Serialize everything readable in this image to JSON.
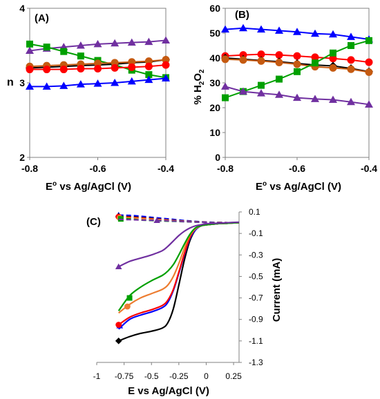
{
  "chart_data": [
    {
      "type": "line",
      "panel_label": "(A)",
      "xlabel_main": "E",
      "xlabel_sup": "o",
      "xlabel_rest": " vs Ag/AgCl (V)",
      "ylabel": "n",
      "xlim": [
        -0.8,
        -0.4
      ],
      "ylim": [
        2,
        4
      ],
      "xticks": [
        "-0.8",
        "-0.6",
        "-0.4"
      ],
      "xtick_values": [
        -0.8,
        -0.6,
        -0.4
      ],
      "yticks": [
        "2",
        "3",
        "4"
      ],
      "ytick_values": [
        2,
        3,
        4
      ],
      "grid": false,
      "x": [
        -0.8,
        -0.75,
        -0.7,
        -0.65,
        -0.6,
        -0.55,
        -0.5,
        -0.45,
        -0.4
      ],
      "series": [
        {
          "color": "#7030A0",
          "marker": "triangle",
          "values": [
            3.43,
            3.46,
            3.48,
            3.5,
            3.52,
            3.53,
            3.54,
            3.55,
            3.57
          ]
        },
        {
          "color": "#00A000",
          "marker": "square",
          "values": [
            3.52,
            3.48,
            3.42,
            3.36,
            3.3,
            3.24,
            3.17,
            3.11,
            3.07
          ]
        },
        {
          "color": "#000000",
          "marker": "diamond",
          "values": [
            3.2,
            3.21,
            3.22,
            3.23,
            3.24,
            3.25,
            3.27,
            3.28,
            3.31
          ]
        },
        {
          "color": "#C55A11",
          "marker": "circle",
          "values": [
            3.22,
            3.23,
            3.24,
            3.25,
            3.26,
            3.27,
            3.28,
            3.29,
            3.31
          ]
        },
        {
          "color": "#FF0000",
          "marker": "circle",
          "values": [
            3.18,
            3.18,
            3.18,
            3.19,
            3.19,
            3.2,
            3.21,
            3.22,
            3.24
          ]
        },
        {
          "color": "#0000FF",
          "marker": "triangle",
          "values": [
            2.95,
            2.95,
            2.96,
            2.98,
            2.99,
            3.0,
            3.02,
            3.04,
            3.06
          ]
        }
      ]
    },
    {
      "type": "line",
      "panel_label": "(B)",
      "xlabel_main": "E",
      "xlabel_sup": "o",
      "xlabel_rest": " vs Ag/AgCl (V)",
      "ylabel_main": "% H",
      "ylabel_sub1": "2",
      "ylabel_mid": "O",
      "ylabel_sub2": "2",
      "xlim": [
        -0.8,
        -0.4
      ],
      "ylim": [
        0,
        60
      ],
      "xticks": [
        "-0.8",
        "-0.6",
        "-0.4"
      ],
      "xtick_values": [
        -0.8,
        -0.6,
        -0.4
      ],
      "yticks": [
        "0",
        "10",
        "20",
        "30",
        "40",
        "50",
        "60"
      ],
      "ytick_values": [
        0,
        10,
        20,
        30,
        40,
        50,
        60
      ],
      "grid": false,
      "x": [
        -0.8,
        -0.75,
        -0.7,
        -0.65,
        -0.6,
        -0.55,
        -0.5,
        -0.45,
        -0.4
      ],
      "series": [
        {
          "color": "#0000FF",
          "marker": "triangle",
          "values": [
            51.5,
            52,
            51.5,
            51,
            50.5,
            49.8,
            49.5,
            48.5,
            47.5
          ]
        },
        {
          "color": "#FF0000",
          "marker": "circle",
          "values": [
            40.8,
            41.2,
            41.5,
            41.2,
            40.8,
            40.3,
            39.8,
            39.2,
            38.3
          ]
        },
        {
          "color": "#000000",
          "marker": "diamond",
          "values": [
            40,
            39.5,
            39,
            38.5,
            37.8,
            37.2,
            36.8,
            35.8,
            34.5
          ]
        },
        {
          "color": "#C55A11",
          "marker": "circle",
          "values": [
            39.5,
            39.2,
            38.8,
            38.2,
            37.5,
            36.5,
            36.0,
            35.5,
            34.3
          ]
        },
        {
          "color": "#00A000",
          "marker": "square",
          "values": [
            24,
            26.5,
            29,
            31.5,
            34.5,
            38,
            42,
            45,
            47
          ]
        },
        {
          "color": "#7030A0",
          "marker": "triangle",
          "values": [
            28.5,
            26.5,
            25.8,
            25.2,
            24,
            23.5,
            23.2,
            22.3,
            21.3
          ]
        }
      ]
    },
    {
      "type": "line",
      "panel_label": "(C)",
      "xlabel": "E vs Ag/AgCl (V)",
      "ylabel": "Current (mA)",
      "xlim": [
        -1,
        0.3
      ],
      "ylim": [
        -1.3,
        0.1
      ],
      "xticks": [
        "-1",
        "-0.75",
        "-0.5",
        "-0.25",
        "0",
        "0.25"
      ],
      "xtick_values": [
        -1,
        -0.75,
        -0.5,
        -0.25,
        0,
        0.25
      ],
      "yticks": [
        "0.1",
        "-0.1",
        "-0.3",
        "-0.5",
        "-0.7",
        "-0.9",
        "-1.1",
        "-1.3"
      ],
      "ytick_values": [
        0.1,
        -0.1,
        -0.3,
        -0.5,
        -0.7,
        -0.9,
        -1.1,
        -1.3
      ],
      "grid": false,
      "disk_current": [
        {
          "color": "#000000",
          "marker": "diamond",
          "marker_at": [
            -0.8,
            -1.1
          ],
          "x": [
            -0.8,
            -0.7,
            -0.6,
            -0.5,
            -0.4,
            -0.35,
            -0.3,
            -0.25,
            -0.2,
            -0.15,
            -0.1,
            -0.05,
            0,
            0.1,
            0.2,
            0.3
          ],
          "values": [
            -1.1,
            -1.06,
            -1.03,
            -1.01,
            -0.98,
            -0.93,
            -0.8,
            -0.58,
            -0.35,
            -0.17,
            -0.07,
            -0.03,
            -0.02,
            -0.01,
            -0.005,
            0
          ]
        },
        {
          "color": "#0000FF",
          "marker": "triangle",
          "marker_at": [
            -0.79,
            -0.96
          ],
          "x": [
            -0.8,
            -0.7,
            -0.6,
            -0.5,
            -0.4,
            -0.35,
            -0.3,
            -0.25,
            -0.2,
            -0.15,
            -0.1,
            -0.05,
            0,
            0.1,
            0.2,
            0.3
          ],
          "values": [
            -0.99,
            -0.9,
            -0.86,
            -0.83,
            -0.79,
            -0.74,
            -0.63,
            -0.47,
            -0.3,
            -0.15,
            -0.07,
            -0.03,
            -0.02,
            -0.01,
            -0.005,
            0
          ]
        },
        {
          "color": "#FF0000",
          "marker": "circle",
          "marker_at": [
            -0.8,
            -0.95
          ],
          "x": [
            -0.8,
            -0.7,
            -0.6,
            -0.5,
            -0.4,
            -0.35,
            -0.3,
            -0.25,
            -0.2,
            -0.15,
            -0.1,
            -0.05,
            0,
            0.1,
            0.2,
            0.3
          ],
          "values": [
            -0.95,
            -0.88,
            -0.84,
            -0.81,
            -0.77,
            -0.72,
            -0.62,
            -0.46,
            -0.29,
            -0.14,
            -0.06,
            -0.03,
            -0.02,
            -0.01,
            -0.005,
            0
          ]
        },
        {
          "color": "#ED7D31",
          "marker": "circle",
          "marker_at": [
            -0.72,
            -0.78
          ],
          "x": [
            -0.8,
            -0.7,
            -0.6,
            -0.5,
            -0.4,
            -0.35,
            -0.3,
            -0.25,
            -0.2,
            -0.15,
            -0.1,
            -0.05,
            0,
            0.1,
            0.2,
            0.3
          ],
          "values": [
            -0.84,
            -0.76,
            -0.7,
            -0.66,
            -0.62,
            -0.58,
            -0.5,
            -0.38,
            -0.24,
            -0.12,
            -0.06,
            -0.03,
            -0.02,
            -0.01,
            -0.005,
            0
          ]
        },
        {
          "color": "#00A000",
          "marker": "square",
          "marker_at": [
            -0.7,
            -0.7
          ],
          "x": [
            -0.8,
            -0.7,
            -0.6,
            -0.5,
            -0.4,
            -0.35,
            -0.3,
            -0.25,
            -0.2,
            -0.15,
            -0.1,
            -0.05,
            0,
            0.1,
            0.2,
            0.3
          ],
          "values": [
            -0.82,
            -0.68,
            -0.6,
            -0.54,
            -0.49,
            -0.45,
            -0.39,
            -0.3,
            -0.2,
            -0.11,
            -0.05,
            -0.03,
            -0.02,
            -0.01,
            -0.005,
            0
          ]
        },
        {
          "color": "#7030A0",
          "marker": "triangle",
          "marker_at": [
            -0.8,
            -0.41
          ],
          "x": [
            -0.8,
            -0.7,
            -0.6,
            -0.5,
            -0.4,
            -0.35,
            -0.3,
            -0.25,
            -0.2,
            -0.15,
            -0.1,
            -0.05,
            0,
            0.1,
            0.2,
            0.3
          ],
          "values": [
            -0.41,
            -0.36,
            -0.33,
            -0.3,
            -0.26,
            -0.22,
            -0.17,
            -0.12,
            -0.08,
            -0.05,
            -0.03,
            -0.02,
            -0.01,
            -0.005,
            0,
            0.005
          ]
        }
      ],
      "ring_current": [
        {
          "color": "#0000FF",
          "marker": "triangle",
          "marker_at": [
            -0.8,
            0.07
          ],
          "x": [
            -0.8,
            -0.7,
            -0.6,
            -0.5,
            -0.4,
            -0.3,
            -0.2,
            -0.1,
            0,
            0.1,
            0.2,
            0.3
          ],
          "values": [
            0.07,
            0.068,
            0.06,
            0.05,
            0.04,
            0.03,
            0.02,
            0.012,
            0.006,
            0.002,
            0,
            0
          ]
        },
        {
          "color": "#000000",
          "marker": "diamond",
          "marker_at": [
            -0.8,
            0.06
          ],
          "x": [
            -0.8,
            -0.7,
            -0.6,
            -0.5,
            -0.4,
            -0.3,
            -0.2,
            -0.1,
            0,
            0.1,
            0.2,
            0.3
          ],
          "values": [
            0.06,
            0.055,
            0.048,
            0.04,
            0.03,
            0.022,
            0.015,
            0.009,
            0.004,
            0.002,
            0,
            0
          ]
        },
        {
          "color": "#FF0000",
          "marker": "circle",
          "marker_at": [
            -0.8,
            0.055
          ],
          "x": [
            -0.8,
            -0.7,
            -0.6,
            -0.5,
            -0.4,
            -0.3,
            -0.2,
            -0.1,
            0,
            0.1,
            0.2,
            0.3
          ],
          "values": [
            0.055,
            0.05,
            0.044,
            0.036,
            0.028,
            0.02,
            0.013,
            0.008,
            0.004,
            0.002,
            0,
            0
          ]
        },
        {
          "color": "#ED7D31",
          "marker": "circle",
          "marker_at": [
            -0.79,
            0.045
          ],
          "x": [
            -0.8,
            -0.7,
            -0.6,
            -0.5,
            -0.4,
            -0.3,
            -0.2,
            -0.1,
            0,
            0.1,
            0.2,
            0.3
          ],
          "values": [
            0.048,
            0.045,
            0.04,
            0.033,
            0.026,
            0.019,
            0.013,
            0.008,
            0.004,
            0.002,
            0,
            0
          ]
        },
        {
          "color": "#00A000",
          "marker": "square",
          "marker_at": [
            -0.78,
            0.035
          ],
          "x": [
            -0.8,
            -0.7,
            -0.6,
            -0.5,
            -0.4,
            -0.3,
            -0.2,
            -0.1,
            0,
            0.1,
            0.2,
            0.3
          ],
          "values": [
            0.04,
            0.035,
            0.025,
            0.02,
            0.016,
            0.013,
            0.009,
            0.006,
            0.003,
            0.001,
            0,
            0
          ]
        },
        {
          "color": "#7030A0",
          "marker": "triangle",
          "marker_at": [
            -0.45,
            0.02
          ],
          "x": [
            -0.8,
            -0.7,
            -0.6,
            -0.5,
            -0.4,
            -0.3,
            -0.2,
            -0.1,
            0,
            0.1,
            0.2,
            0.3
          ],
          "values": [
            0.03,
            0.028,
            0.025,
            0.022,
            0.019,
            0.015,
            0.01,
            0.006,
            0.003,
            0.001,
            0,
            0
          ]
        }
      ]
    }
  ]
}
